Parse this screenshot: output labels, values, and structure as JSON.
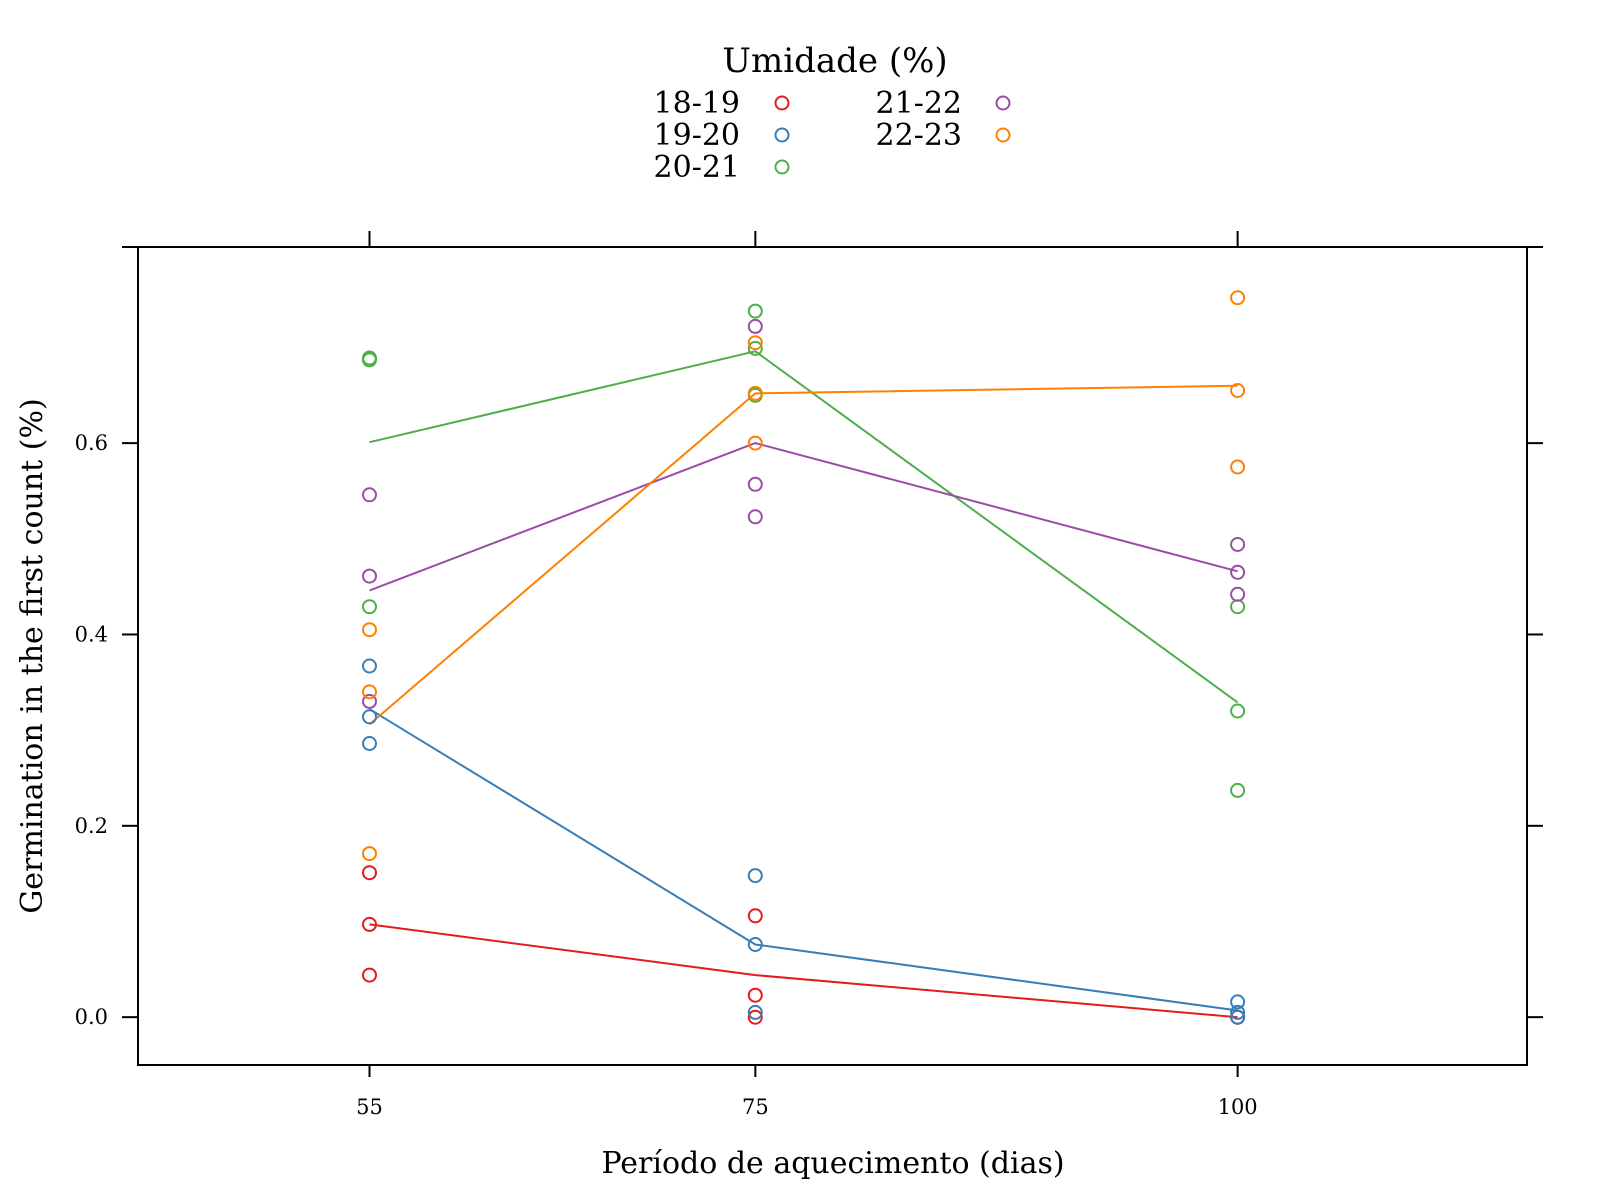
{
  "chart_data": {
    "type": "scatter",
    "xlabel": "Período de aquecimento (dias)",
    "ylabel": "Germination in the first count (%)",
    "x_ticks": [
      "55",
      "75",
      "100"
    ],
    "y_ticks": [
      "0.0",
      "0.2",
      "0.4",
      "0.6"
    ],
    "xlim": [
      43,
      115
    ],
    "ylim": [
      -0.05,
      0.805
    ],
    "grid": false,
    "legend_title": "Umidade (%)",
    "legend_position": "top",
    "series": [
      {
        "name": "18-19",
        "color": "#E41A1C",
        "points": [
          [
            55,
            0.151
          ],
          [
            55,
            0.097
          ],
          [
            55,
            0.044
          ],
          [
            75,
            0.106
          ],
          [
            75,
            0.023
          ],
          [
            75,
            0.0
          ],
          [
            100,
            0.0
          ],
          [
            100,
            0.0
          ]
        ],
        "line": [
          [
            55,
            0.097
          ],
          [
            75,
            0.044
          ],
          [
            100,
            0.0
          ]
        ]
      },
      {
        "name": "19-20",
        "color": "#377EB8",
        "points": [
          [
            55,
            0.367
          ],
          [
            55,
            0.314
          ],
          [
            55,
            0.286
          ],
          [
            75,
            0.148
          ],
          [
            75,
            0.076
          ],
          [
            75,
            0.005
          ],
          [
            100,
            0.016
          ],
          [
            100,
            0.005
          ],
          [
            100,
            0.0
          ]
        ],
        "line": [
          [
            55,
            0.322
          ],
          [
            75,
            0.076
          ],
          [
            100,
            0.007
          ]
        ]
      },
      {
        "name": "20-21",
        "color": "#4DAF4A",
        "points": [
          [
            55,
            0.689
          ],
          [
            55,
            0.687
          ],
          [
            55,
            0.429
          ],
          [
            75,
            0.738
          ],
          [
            75,
            0.699
          ],
          [
            75,
            0.65
          ],
          [
            100,
            0.429
          ],
          [
            100,
            0.32
          ],
          [
            100,
            0.237
          ]
        ],
        "line": [
          [
            55,
            0.601
          ],
          [
            75,
            0.696
          ],
          [
            100,
            0.329
          ]
        ]
      },
      {
        "name": "21-22",
        "color": "#984EA3",
        "points": [
          [
            55,
            0.546
          ],
          [
            55,
            0.461
          ],
          [
            55,
            0.33
          ],
          [
            75,
            0.722
          ],
          [
            75,
            0.557
          ],
          [
            75,
            0.523
          ],
          [
            100,
            0.494
          ],
          [
            100,
            0.465
          ],
          [
            100,
            0.442
          ]
        ],
        "line": [
          [
            55,
            0.446
          ],
          [
            75,
            0.6
          ],
          [
            100,
            0.466
          ]
        ]
      },
      {
        "name": "22-23",
        "color": "#FF7F00",
        "points": [
          [
            55,
            0.405
          ],
          [
            55,
            0.34
          ],
          [
            55,
            0.171
          ],
          [
            75,
            0.705
          ],
          [
            75,
            0.652
          ],
          [
            75,
            0.6
          ],
          [
            100,
            0.752
          ],
          [
            100,
            0.655
          ],
          [
            100,
            0.575
          ]
        ],
        "line": [
          [
            55,
            0.306
          ],
          [
            75,
            0.652
          ],
          [
            100,
            0.66
          ]
        ]
      }
    ]
  }
}
